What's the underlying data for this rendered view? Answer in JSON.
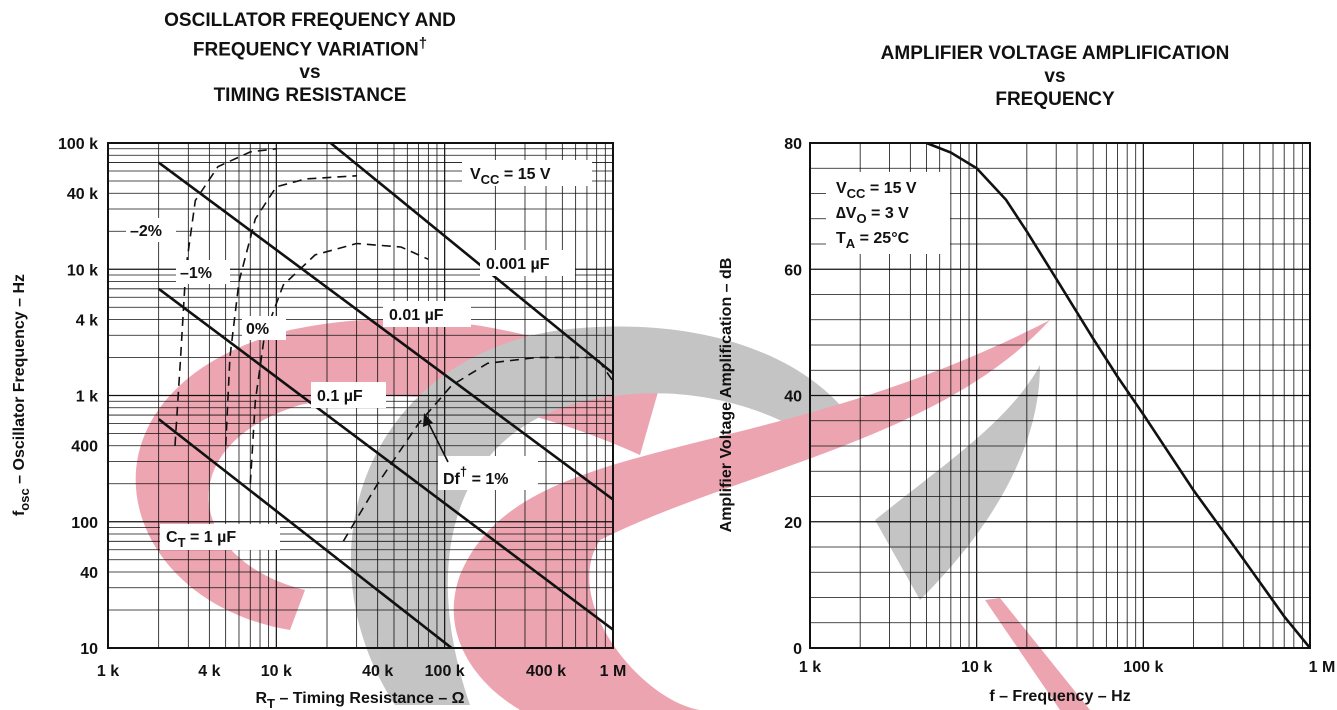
{
  "colors": {
    "ink": "#111111",
    "watermark_red": "#d21e3c",
    "watermark_gray": "#6e6e6e"
  },
  "chart_data": [
    {
      "type": "line",
      "title_lines": [
        "OSCILLATOR FREQUENCY AND",
        "FREQUENCY VARIATION",
        "vs",
        "TIMING RESISTANCE"
      ],
      "title_mark": "†",
      "xlabel": {
        "main": "R",
        "sub": "T",
        "rest": " – Timing Resistance – Ω"
      },
      "ylabel": {
        "main": "f",
        "sub": "osc",
        "rest": " – Oscillator Frequency – Hz"
      },
      "x_scale": "log",
      "y_scale": "log",
      "xlim": [
        1000,
        1000000
      ],
      "ylim": [
        10,
        100000
      ],
      "grid": true,
      "x_ticks": [
        {
          "value": 1000,
          "label": "1 k"
        },
        {
          "value": 4000,
          "label": "4 k"
        },
        {
          "value": 10000,
          "label": "10 k"
        },
        {
          "value": 40000,
          "label": "40 k"
        },
        {
          "value": 100000,
          "label": "100 k"
        },
        {
          "value": 400000,
          "label": "400 k"
        },
        {
          "value": 1000000,
          "label": "1 M"
        }
      ],
      "y_ticks": [
        {
          "value": 100000,
          "label": "100 k"
        },
        {
          "value": 40000,
          "label": "40 k"
        },
        {
          "value": 10000,
          "label": "10 k"
        },
        {
          "value": 4000,
          "label": "4 k"
        },
        {
          "value": 1000,
          "label": "1 k"
        },
        {
          "value": 400,
          "label": "400"
        },
        {
          "value": 100,
          "label": "100"
        },
        {
          "value": 40,
          "label": "40"
        },
        {
          "value": 10,
          "label": "10"
        }
      ],
      "series": [
        {
          "name": "0.001 µF",
          "style": "solid",
          "points": [
            [
              21000,
              100000
            ],
            [
              1000000,
              1500
            ]
          ]
        },
        {
          "name": "0.01 µF",
          "style": "solid",
          "points": [
            [
              2000,
              70000
            ],
            [
              1000000,
              150
            ]
          ]
        },
        {
          "name": "0.1 µF",
          "style": "solid",
          "points": [
            [
              2000,
              7000
            ],
            [
              1000000,
              14
            ]
          ]
        },
        {
          "name": "C_T = 1 µF",
          "style": "solid",
          "points": [
            [
              2000,
              650
            ],
            [
              110000,
              10
            ]
          ]
        },
        {
          "name": "-2%",
          "style": "dashed",
          "points": [
            [
              2500,
              400
            ],
            [
              2700,
              2000
            ],
            [
              2900,
              10000
            ],
            [
              3300,
              35000
            ],
            [
              4500,
              65000
            ],
            [
              7000,
              85000
            ],
            [
              10000,
              90000
            ]
          ]
        },
        {
          "name": "-1%",
          "style": "dashed",
          "points": [
            [
              5000,
              400
            ],
            [
              5300,
              2000
            ],
            [
              6000,
              8000
            ],
            [
              7500,
              25000
            ],
            [
              10000,
              45000
            ],
            [
              15000,
              52000
            ],
            [
              30000,
              55000
            ]
          ]
        },
        {
          "name": "0%",
          "style": "dashed",
          "points": [
            [
              7000,
              200
            ],
            [
              7500,
              900
            ],
            [
              8500,
              3000
            ],
            [
              11000,
              7500
            ],
            [
              17000,
              13000
            ],
            [
              30000,
              16000
            ],
            [
              55000,
              15000
            ],
            [
              80000,
              12000
            ]
          ]
        },
        {
          "name": "Df = 1%",
          "style": "dashed",
          "points": [
            [
              25000,
              70
            ],
            [
              40000,
              200
            ],
            [
              70000,
              600
            ],
            [
              110000,
              1200
            ],
            [
              180000,
              1800
            ],
            [
              350000,
              2000
            ],
            [
              800000,
              2000
            ],
            [
              1000000,
              1300
            ]
          ]
        }
      ],
      "annotations": {
        "vcc": {
          "main": "V",
          "sub": "CC",
          "rest": " = 15 V"
        },
        "cap_labels": [
          "0.001 µF",
          "0.01 µF",
          "0.1 µF"
        ],
        "ct": {
          "main": "C",
          "sub": "T",
          "rest": " = 1 µF"
        },
        "pct_labels": [
          "–2%",
          "–1%",
          "0%"
        ],
        "df": {
          "main": "Df",
          "sup": "†",
          "rest": " = 1%"
        }
      }
    },
    {
      "type": "line",
      "title_lines": [
        "AMPLIFIER VOLTAGE AMPLIFICATION",
        "vs",
        "FREQUENCY"
      ],
      "xlabel": "f – Frequency – Hz",
      "ylabel": "Amplifier Voltage Amplification – dB",
      "x_scale": "log",
      "y_scale": "linear",
      "xlim": [
        1000,
        1000000
      ],
      "ylim": [
        0,
        80
      ],
      "grid": true,
      "x_ticks": [
        {
          "value": 1000,
          "label": "1 k"
        },
        {
          "value": 10000,
          "label": "10 k"
        },
        {
          "value": 100000,
          "label": "100 k"
        },
        {
          "value": 1000000,
          "label": "1 M"
        }
      ],
      "y_ticks": [
        {
          "value": 80,
          "label": "80"
        },
        {
          "value": 60,
          "label": "60"
        },
        {
          "value": 40,
          "label": "40"
        },
        {
          "value": 20,
          "label": "20"
        },
        {
          "value": 0,
          "label": "0"
        }
      ],
      "series": [
        {
          "name": "",
          "style": "solid",
          "points": [
            [
              5000,
              80
            ],
            [
              7000,
              78.5
            ],
            [
              10000,
              76
            ],
            [
              15000,
              71
            ],
            [
              20000,
              66
            ],
            [
              30000,
              58.5
            ],
            [
              50000,
              49
            ],
            [
              70000,
              43
            ],
            [
              100000,
              37
            ],
            [
              200000,
              25
            ],
            [
              400000,
              14
            ],
            [
              700000,
              5
            ],
            [
              1000000,
              0
            ]
          ]
        }
      ],
      "annotations": {
        "lines": [
          {
            "main": "V",
            "sub": "CC",
            "rest": " = 15 V"
          },
          {
            "main": "∆V",
            "sub": "O",
            "rest": " = 3 V"
          },
          {
            "main": "T",
            "sub": "A",
            "rest": " = 25°C"
          }
        ]
      }
    }
  ]
}
